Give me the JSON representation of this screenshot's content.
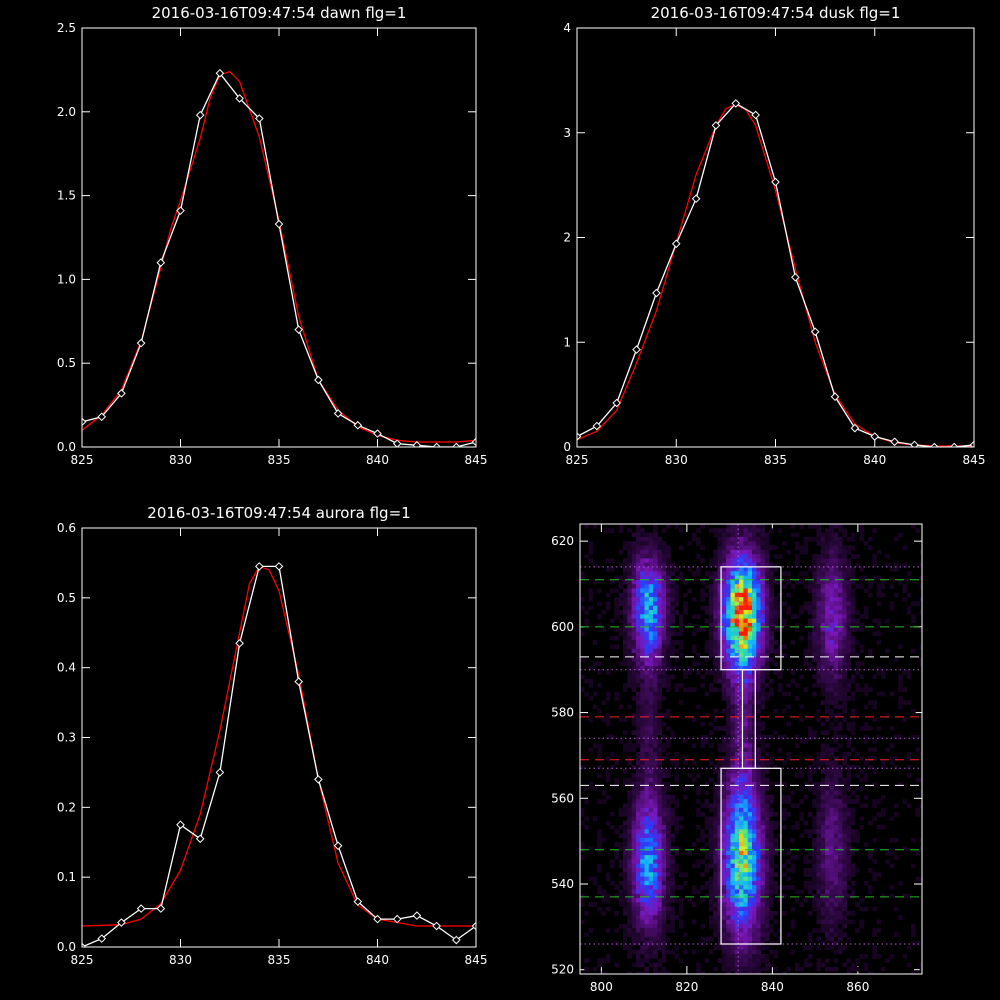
{
  "chart_data": [
    {
      "type": "line",
      "title": "2016-03-16T09:47:54 dawn flg=1",
      "xlim": [
        825,
        845
      ],
      "ylim": [
        0,
        2.5
      ],
      "xticks": [
        "825",
        "830",
        "835",
        "840",
        "845"
      ],
      "yticks": [
        "0.0",
        "0.5",
        "1.0",
        "1.5",
        "2.0",
        "2.5"
      ],
      "series": [
        {
          "color": "#ffffff",
          "marker": "diamond",
          "x": [
            825,
            826,
            827,
            828,
            829,
            830,
            831,
            832,
            833,
            834,
            835,
            836,
            837,
            838,
            839,
            840,
            841,
            842,
            843,
            844,
            845
          ],
          "y": [
            0.15,
            0.18,
            0.32,
            0.62,
            1.1,
            1.41,
            1.98,
            2.23,
            2.08,
            1.96,
            1.33,
            0.7,
            0.4,
            0.2,
            0.13,
            0.08,
            0.02,
            0.01,
            0.0,
            0.0,
            0.03
          ]
        },
        {
          "color": "#ff0000",
          "x": [
            825,
            826,
            827,
            828,
            829,
            829.5,
            830,
            831,
            831.5,
            832,
            832.5,
            833,
            834,
            835,
            836,
            837,
            838,
            839,
            840,
            841,
            842,
            843,
            844,
            845
          ],
          "y": [
            0.1,
            0.19,
            0.34,
            0.63,
            1.07,
            1.3,
            1.47,
            1.84,
            2.08,
            2.22,
            2.24,
            2.18,
            1.85,
            1.35,
            0.78,
            0.4,
            0.22,
            0.12,
            0.07,
            0.04,
            0.03,
            0.03,
            0.03,
            0.04
          ]
        }
      ]
    },
    {
      "type": "line",
      "title": "2016-03-16T09:47:54 dusk flg=1",
      "xlim": [
        825,
        845
      ],
      "ylim": [
        0,
        4
      ],
      "xticks": [
        "825",
        "830",
        "835",
        "840",
        "845"
      ],
      "yticks": [
        "0",
        "1",
        "2",
        "3",
        "4"
      ],
      "series": [
        {
          "color": "#ffffff",
          "marker": "diamond",
          "x": [
            825,
            826,
            827,
            828,
            829,
            830,
            831,
            832,
            833,
            834,
            835,
            836,
            837,
            838,
            839,
            840,
            841,
            842,
            843,
            844,
            845
          ],
          "y": [
            0.1,
            0.2,
            0.42,
            0.93,
            1.47,
            1.94,
            2.37,
            3.07,
            3.28,
            3.17,
            2.53,
            1.62,
            1.1,
            0.48,
            0.18,
            0.1,
            0.05,
            0.02,
            0.0,
            0.0,
            0.02
          ]
        },
        {
          "color": "#ff0000",
          "x": [
            825,
            826,
            827,
            828,
            829,
            830,
            831,
            832,
            832.5,
            833,
            833.5,
            834,
            835,
            836,
            837,
            838,
            839,
            840,
            841,
            842,
            843,
            844,
            845
          ],
          "y": [
            0.07,
            0.15,
            0.35,
            0.8,
            1.3,
            1.95,
            2.6,
            3.07,
            3.23,
            3.27,
            3.22,
            3.07,
            2.45,
            1.7,
            1.0,
            0.5,
            0.22,
            0.1,
            0.04,
            0.02,
            0.01,
            0.01,
            0.01
          ]
        }
      ]
    },
    {
      "type": "line",
      "title": "2016-03-16T09:47:54 aurora flg=1",
      "xlim": [
        825,
        845
      ],
      "ylim": [
        0,
        0.6
      ],
      "xticks": [
        "825",
        "830",
        "835",
        "840",
        "845"
      ],
      "yticks": [
        "0.0",
        "0.1",
        "0.2",
        "0.3",
        "0.4",
        "0.5",
        "0.6"
      ],
      "series": [
        {
          "color": "#ffffff",
          "marker": "diamond",
          "x": [
            825,
            826,
            827,
            828,
            829,
            830,
            831,
            832,
            833,
            834,
            835,
            836,
            837,
            838,
            839,
            840,
            841,
            842,
            843,
            844,
            845
          ],
          "y": [
            0.0,
            0.012,
            0.035,
            0.055,
            0.055,
            0.175,
            0.155,
            0.25,
            0.435,
            0.545,
            0.545,
            0.38,
            0.24,
            0.145,
            0.065,
            0.04,
            0.04,
            0.045,
            0.03,
            0.01,
            0.03
          ]
        },
        {
          "color": "#ff0000",
          "x": [
            825,
            827,
            828,
            829,
            830,
            831,
            832,
            833,
            833.5,
            834,
            834.5,
            835,
            836,
            837,
            838,
            839,
            840,
            842,
            845
          ],
          "y": [
            0.03,
            0.032,
            0.04,
            0.062,
            0.11,
            0.19,
            0.31,
            0.45,
            0.52,
            0.545,
            0.54,
            0.51,
            0.39,
            0.24,
            0.12,
            0.06,
            0.04,
            0.03,
            0.03
          ]
        }
      ]
    },
    {
      "type": "heatmap",
      "title": "",
      "xlim": [
        795,
        875
      ],
      "ylim": [
        519,
        624
      ],
      "xticks": [
        "800",
        "820",
        "840",
        "860"
      ],
      "yticks": [
        "520",
        "540",
        "560",
        "580",
        "600",
        "620"
      ],
      "colorscale": [
        "#000000",
        "#3b0a55",
        "#7a16b8",
        "#2a3cff",
        "#11b4ff",
        "#34e0a0",
        "#d8f020",
        "#ff1a00"
      ],
      "blobs": [
        {
          "cx": 811,
          "cy": 604,
          "sx": 2.6,
          "sy": 8,
          "amp": 0.55
        },
        {
          "cx": 811,
          "cy": 545,
          "sx": 2.6,
          "sy": 10,
          "amp": 0.5
        },
        {
          "cx": 833,
          "cy": 603,
          "sx": 3,
          "sy": 9,
          "amp": 1.0
        },
        {
          "cx": 833,
          "cy": 546,
          "sx": 3,
          "sy": 12,
          "amp": 0.72
        },
        {
          "cx": 833,
          "cy": 577,
          "sx": 1.8,
          "sy": 12,
          "amp": 0.14
        },
        {
          "cx": 811,
          "cy": 577,
          "sx": 1.8,
          "sy": 12,
          "amp": 0.1
        },
        {
          "cx": 854,
          "cy": 602,
          "sx": 2.5,
          "sy": 10,
          "amp": 0.28
        },
        {
          "cx": 854,
          "cy": 548,
          "sx": 2.5,
          "sy": 12,
          "amp": 0.18
        }
      ],
      "vline_dotted_x": [
        832
      ],
      "hlines": [
        {
          "y": 611,
          "color": "#22c022",
          "style": "dashed"
        },
        {
          "y": 600,
          "color": "#22c022",
          "style": "dashed"
        },
        {
          "y": 548,
          "color": "#22c022",
          "style": "dashed"
        },
        {
          "y": 537,
          "color": "#22c022",
          "style": "dashed"
        },
        {
          "y": 593,
          "color": "#ffffff",
          "style": "dashed"
        },
        {
          "y": 563,
          "color": "#ffffff",
          "style": "dashed"
        },
        {
          "y": 579,
          "color": "#ff2020",
          "style": "dashed"
        },
        {
          "y": 569,
          "color": "#ff2020",
          "style": "dashed"
        },
        {
          "y": 614,
          "color": "#b060d0",
          "style": "dotted"
        },
        {
          "y": 590,
          "color": "#b060d0",
          "style": "dotted"
        },
        {
          "y": 574,
          "color": "#b060d0",
          "style": "dotted"
        },
        {
          "y": 567,
          "color": "#b060d0",
          "style": "dotted"
        },
        {
          "y": 526,
          "color": "#b060d0",
          "style": "dotted"
        }
      ],
      "boxes": [
        {
          "x0": 828,
          "x1": 842,
          "y0": 590,
          "y1": 614
        },
        {
          "x0": 828,
          "x1": 842,
          "y0": 526,
          "y1": 567
        },
        {
          "x0": 833,
          "x1": 836,
          "y0": 567,
          "y1": 590
        }
      ]
    }
  ]
}
